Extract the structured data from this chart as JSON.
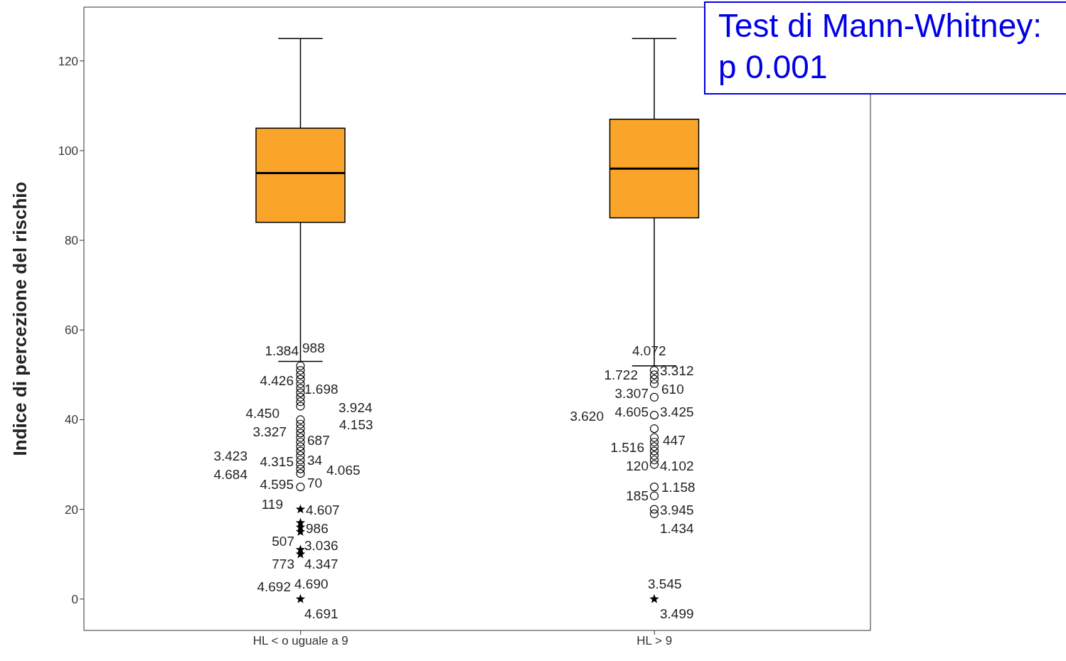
{
  "chart_data": {
    "type": "box",
    "ylabel": "Indice di percezione del rischio",
    "categories": [
      "HL < o uguale a 9",
      "HL > 9"
    ],
    "color": "#faa52a",
    "ylim": [
      -7,
      132
    ],
    "yticks": [
      0,
      20,
      40,
      60,
      80,
      100,
      120
    ],
    "boxes": [
      {
        "low": 53,
        "q1": 84,
        "median": 95,
        "q3": 105,
        "high": 125,
        "outliers": [
          52,
          51,
          50,
          49,
          48,
          47,
          46,
          45,
          44,
          43,
          40,
          39,
          38,
          37,
          36,
          35,
          34,
          33,
          32,
          31,
          30,
          29,
          28,
          25,
          20,
          17,
          16,
          15,
          11,
          10,
          0
        ]
      },
      {
        "low": 52,
        "q1": 85,
        "median": 96,
        "q3": 107,
        "high": 125,
        "outliers": [
          51,
          50,
          49,
          48,
          45,
          41,
          38,
          36,
          35,
          34,
          33,
          32,
          31,
          30,
          25,
          23,
          20,
          19,
          0
        ]
      }
    ],
    "annotations": [
      "988",
      "1.384",
      "1.698",
      "4.426",
      "3.924",
      "4.450",
      "4.153",
      "3.327",
      "687",
      "34",
      "4.315",
      "3.423",
      "4.065",
      "4.684",
      "70",
      "4.595",
      "4.607",
      "119",
      "986",
      "3.036",
      "507",
      "4.347",
      "773",
      "4.690",
      "4.692",
      "4.691",
      "4.072",
      "3.312",
      "1.722",
      "610",
      "3.307",
      "3.425",
      "4.605",
      "3.620",
      "447",
      "1.516",
      "4.102",
      "120",
      "1.158",
      "185",
      "3.945",
      "1.434",
      "3.545",
      "3.499",
      "Test di Mann-Whitney: p 0.001"
    ]
  }
}
